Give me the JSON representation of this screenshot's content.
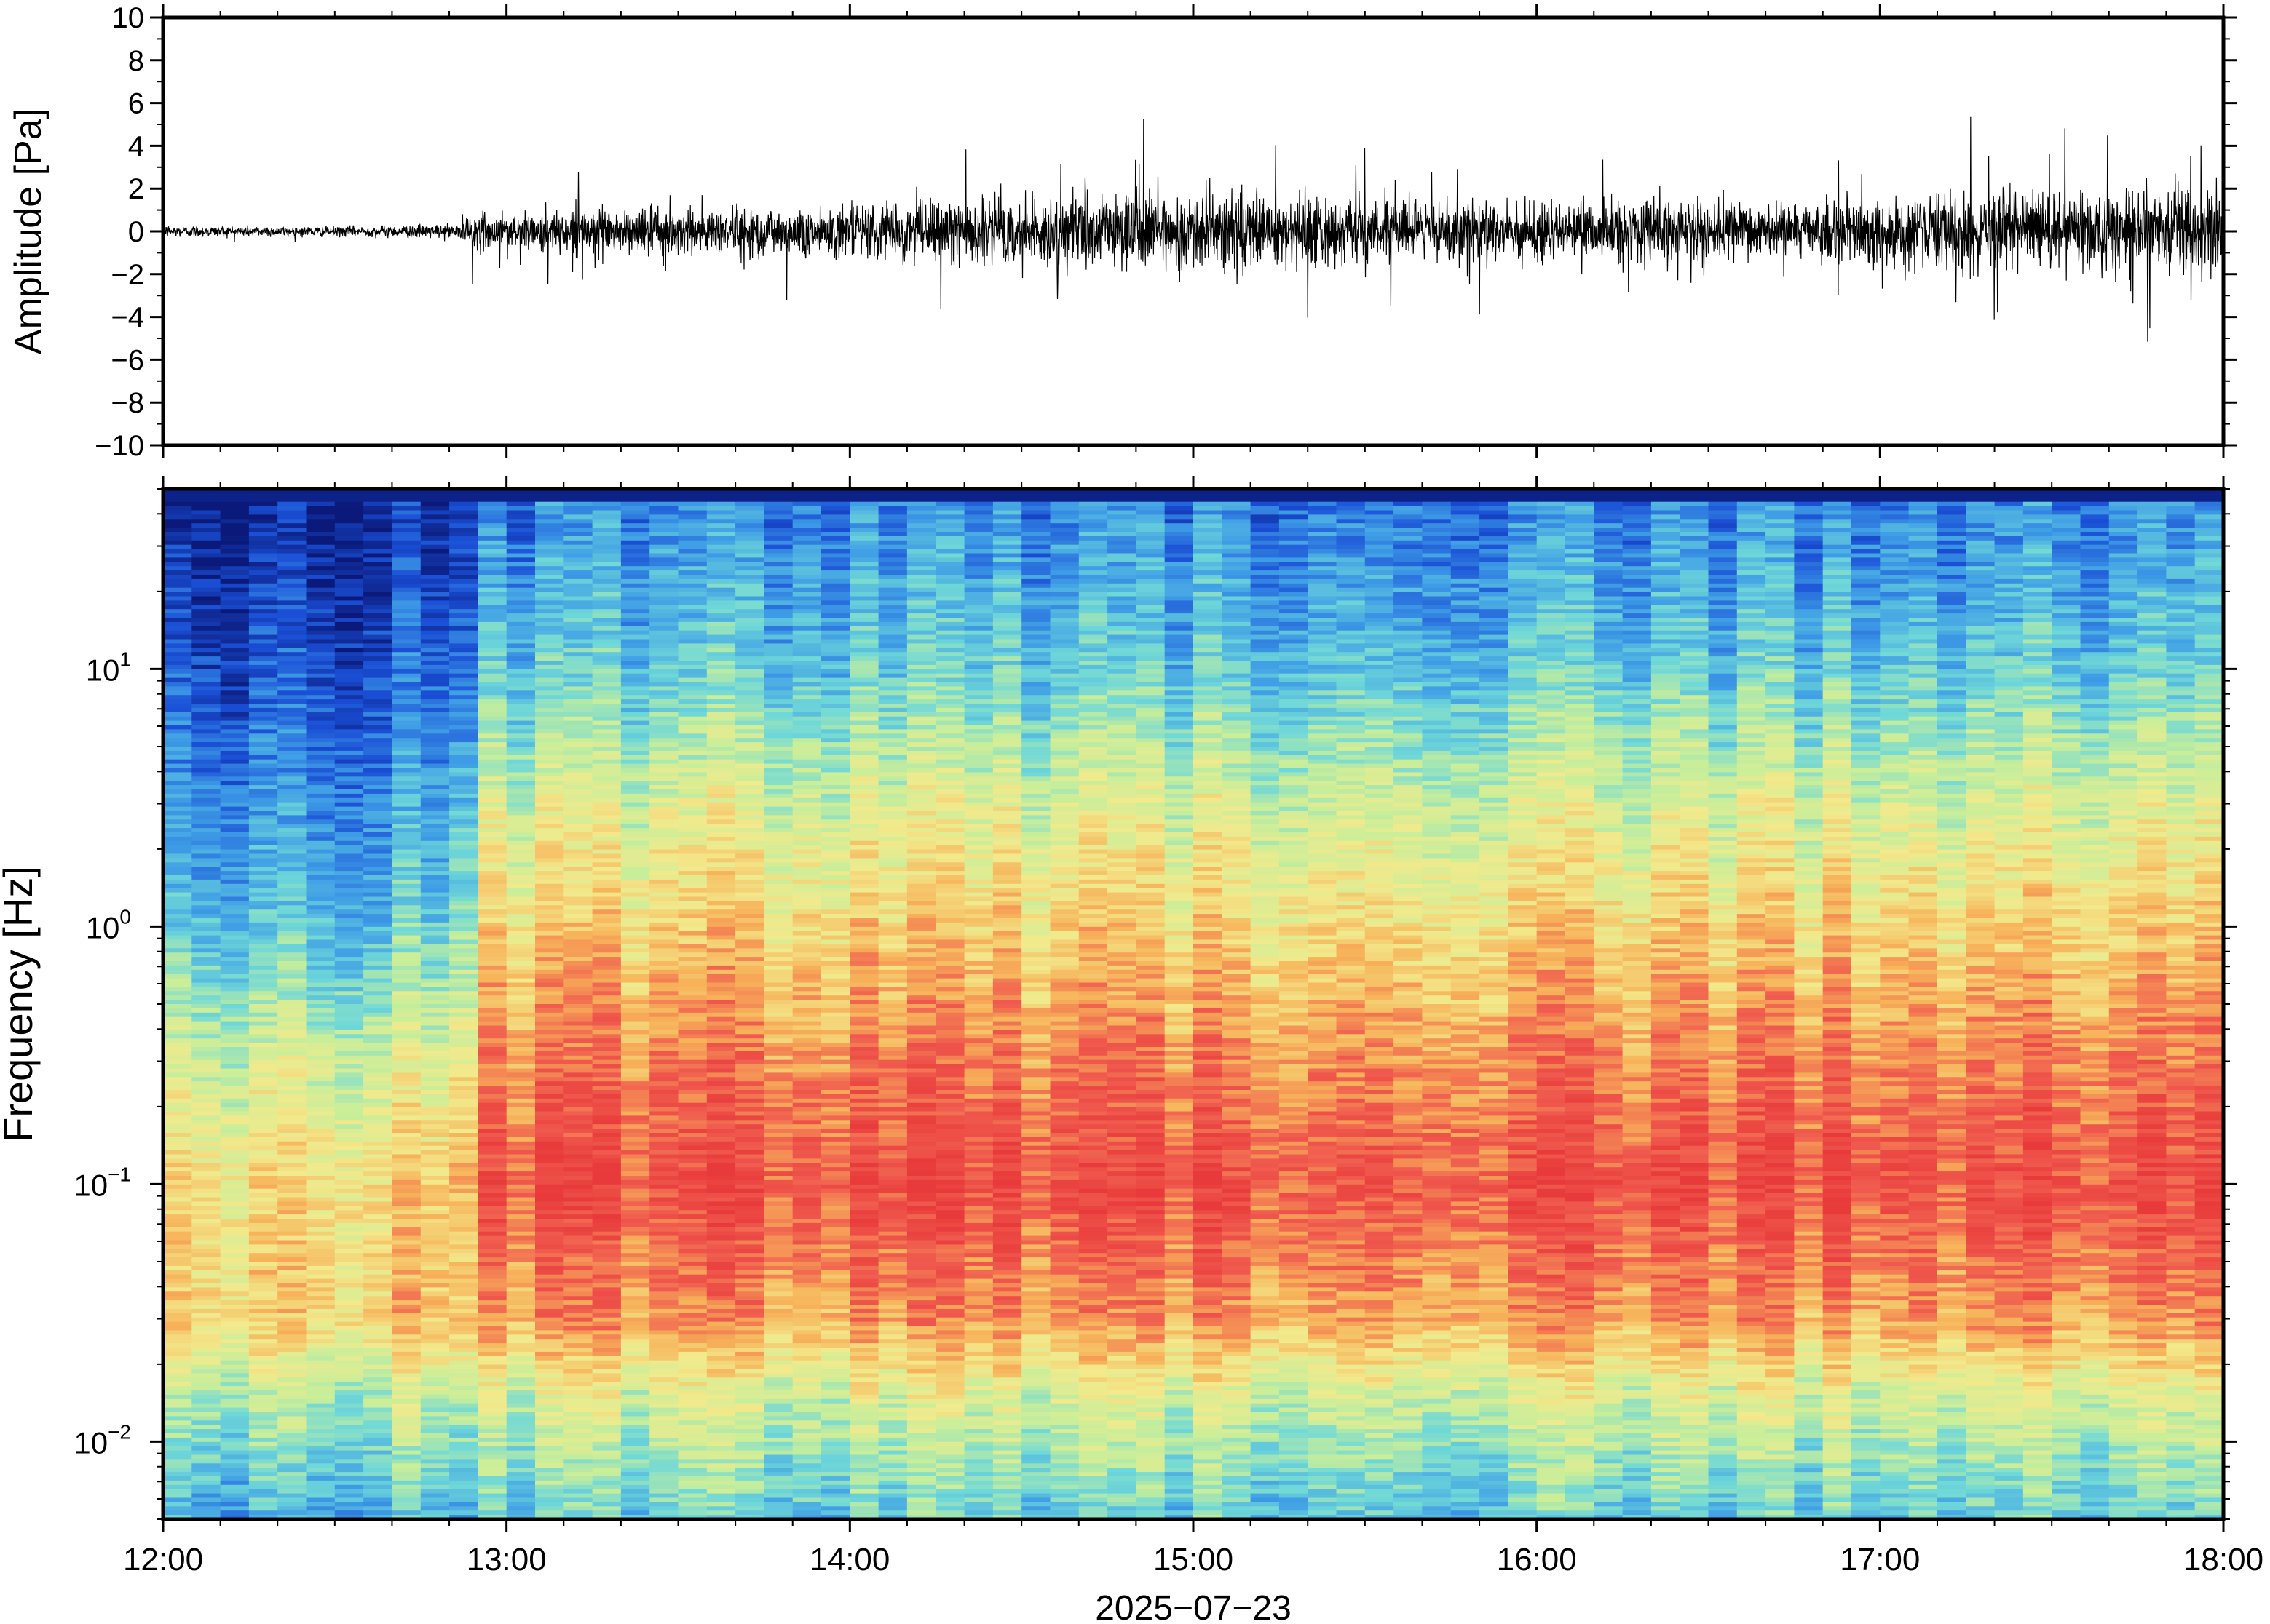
{
  "chart_data": [
    {
      "type": "line",
      "ylabel": "Amplitude [Pa]",
      "ylim": [
        -10,
        10
      ],
      "yticks": [
        "10",
        "8",
        "6",
        "4",
        "2",
        "0",
        "−2",
        "−4",
        "−6",
        "−8",
        "−10"
      ],
      "ytick_values": [
        10,
        8,
        6,
        4,
        2,
        0,
        -2,
        -4,
        -6,
        -8,
        -10
      ],
      "xlim": [
        "12:00",
        "18:00"
      ],
      "grid": false,
      "legend": "none",
      "envelope": {
        "note_hours": [
          12.0,
          12.5,
          12.85,
          12.9,
          13.5,
          14.0,
          14.5,
          14.7,
          15.0,
          15.3,
          15.6,
          16.0,
          16.5,
          16.8,
          17.0,
          17.3,
          17.6,
          18.0
        ],
        "amplitude_pa": [
          0.25,
          0.2,
          0.3,
          0.8,
          1.0,
          1.1,
          1.3,
          1.7,
          1.6,
          1.5,
          1.2,
          1.3,
          1.2,
          1.1,
          1.2,
          1.9,
          1.6,
          1.7
        ]
      },
      "line_color": "#000000"
    },
    {
      "type": "heatmap",
      "ylabel": "Frequency [Hz]",
      "yscale": "log",
      "ylim": [
        0.005,
        50
      ],
      "yticks": [
        {
          "value": 10,
          "base": "10",
          "exp": "1"
        },
        {
          "value": 1,
          "base": "10",
          "exp": "0"
        },
        {
          "value": 0.1,
          "base": "10",
          "exp": "−1"
        },
        {
          "value": 0.01,
          "base": "10",
          "exp": "−2"
        }
      ],
      "xlabel": "2025−07−23",
      "xticks": [
        "12:00",
        "13:00",
        "14:00",
        "15:00",
        "16:00",
        "17:00",
        "18:00"
      ],
      "colormap": "rainbow",
      "colormap_stops": [
        "#0b1a7a",
        "#1a4fd6",
        "#3f9ee6",
        "#6fd8d8",
        "#c8ee9a",
        "#f2ea8c",
        "#f7b35a",
        "#f05a4e",
        "#e83a3a"
      ],
      "bands": [
        {
          "hz": 40,
          "before_13": 0.05,
          "after_13": 0.22
        },
        {
          "hz": 10,
          "before_13": 0.15,
          "after_13": 0.35
        },
        {
          "hz": 3,
          "before_13": 0.25,
          "after_13": 0.55
        },
        {
          "hz": 1,
          "before_13": 0.35,
          "after_13": 0.68
        },
        {
          "hz": 0.3,
          "before_13": 0.55,
          "after_13": 0.82
        },
        {
          "hz": 0.1,
          "before_13": 0.68,
          "after_13": 0.92
        },
        {
          "hz": 0.03,
          "before_13": 0.7,
          "after_13": 0.78
        },
        {
          "hz": 0.015,
          "before_13": 0.5,
          "after_13": 0.55
        },
        {
          "hz": 0.005,
          "before_13": 0.3,
          "after_13": 0.35
        }
      ]
    }
  ]
}
